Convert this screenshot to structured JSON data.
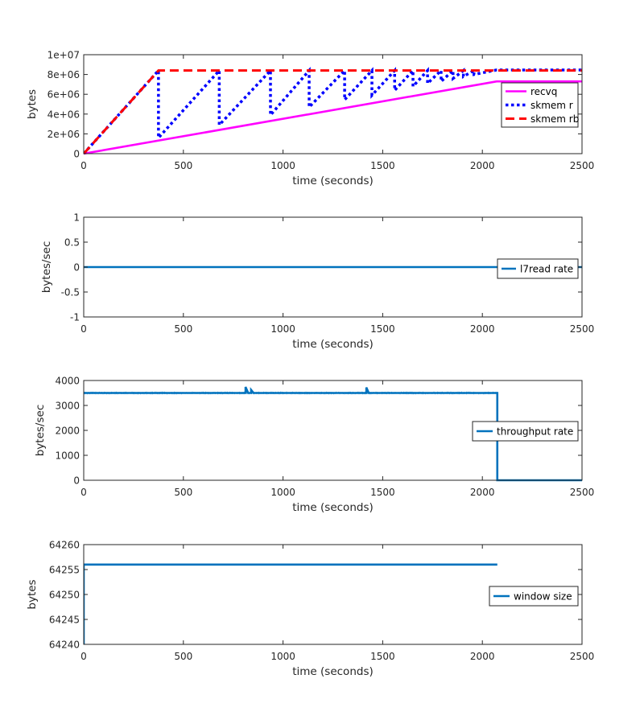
{
  "chart_data": [
    {
      "type": "line",
      "title": "",
      "xlabel": "time (seconds)",
      "ylabel": "bytes",
      "xlim": [
        0,
        2500
      ],
      "ylim": [
        0,
        10000000
      ],
      "xticks": [
        0,
        500,
        1000,
        1500,
        2000,
        2500
      ],
      "xtick_labels": [
        "0",
        "500",
        "1000",
        "1500",
        "2000",
        "2500"
      ],
      "yticks": [
        0,
        2000000,
        4000000,
        6000000,
        8000000,
        10000000
      ],
      "ytick_labels": [
        "0",
        "2e+06",
        "4e+06",
        "6e+06",
        "8e+06",
        "1e+07"
      ],
      "grid": false,
      "legend_position": "right",
      "series": [
        {
          "name": "recvq",
          "color": "#ff00ff",
          "style": "solid",
          "x": [
            0,
            2072,
            2500
          ],
          "y": [
            0,
            7300000,
            7300000
          ]
        },
        {
          "name": "skmem r",
          "color": "#0000ff",
          "style": "dotted",
          "x": [
            0,
            375,
            375,
            680,
            680,
            937,
            937,
            1131,
            1131,
            1309,
            1309,
            1446,
            1446,
            1560,
            1560,
            1652,
            1652,
            1725,
            1725,
            1793,
            1793,
            1853,
            1853,
            1905,
            1905,
            1958,
            1958,
            2070,
            2500
          ],
          "y": [
            0,
            8400000,
            1600000,
            8400000,
            2900000,
            8400000,
            3900000,
            8400000,
            4700000,
            8400000,
            5450000,
            8400000,
            5900000,
            8400000,
            6400000,
            8400000,
            6800000,
            8400000,
            7100000,
            8400000,
            7300000,
            8400000,
            7600000,
            8400000,
            7800000,
            8400000,
            8000000,
            8450000,
            8450000
          ]
        },
        {
          "name": "skmem rb",
          "color": "#ff0000",
          "style": "dashed",
          "x": [
            0,
            375,
            2500
          ],
          "y": [
            0,
            8400000,
            8400000
          ]
        }
      ]
    },
    {
      "type": "line",
      "title": "",
      "xlabel": "time (seconds)",
      "ylabel": "bytes/sec",
      "xlim": [
        0,
        2500
      ],
      "ylim": [
        -1,
        1
      ],
      "xticks": [
        0,
        500,
        1000,
        1500,
        2000,
        2500
      ],
      "xtick_labels": [
        "0",
        "500",
        "1000",
        "1500",
        "2000",
        "2500"
      ],
      "yticks": [
        -1,
        -0.5,
        0,
        0.5,
        1
      ],
      "ytick_labels": [
        "-1",
        "-0.5",
        "0",
        "0.5",
        "1"
      ],
      "grid": false,
      "legend_position": "right",
      "series": [
        {
          "name": "l7read rate",
          "color": "#0072bd",
          "style": "solid",
          "x": [
            0,
            2500
          ],
          "y": [
            0,
            0
          ]
        }
      ]
    },
    {
      "type": "line",
      "title": "",
      "xlabel": "time (seconds)",
      "ylabel": "bytes/sec",
      "xlim": [
        0,
        2500
      ],
      "ylim": [
        0,
        4000
      ],
      "xticks": [
        0,
        500,
        1000,
        1500,
        2000,
        2500
      ],
      "xtick_labels": [
        "0",
        "500",
        "1000",
        "1500",
        "2000",
        "2500"
      ],
      "yticks": [
        0,
        1000,
        2000,
        3000,
        4000
      ],
      "ytick_labels": [
        "0",
        "1000",
        "2000",
        "3000",
        "4000"
      ],
      "grid": false,
      "legend_position": "right",
      "series": [
        {
          "name": "throughput rate",
          "color": "#0072bd",
          "style": "solid",
          "x": [
            0,
            800,
            812,
            812,
            825,
            840,
            840,
            852,
            1405,
            1418,
            1418,
            1430,
            2075,
            2075,
            2500
          ],
          "y": [
            3500,
            3500,
            3500,
            3740,
            3500,
            3500,
            3620,
            3500,
            3500,
            3500,
            3720,
            3500,
            3500,
            0,
            0
          ],
          "noise_band": [
            3440,
            3560
          ]
        }
      ]
    },
    {
      "type": "line",
      "title": "",
      "xlabel": "time (seconds)",
      "ylabel": "bytes",
      "xlim": [
        0,
        2500
      ],
      "ylim": [
        64240,
        64260
      ],
      "xticks": [
        0,
        500,
        1000,
        1500,
        2000,
        2500
      ],
      "xtick_labels": [
        "0",
        "500",
        "1000",
        "1500",
        "2000",
        "2500"
      ],
      "yticks": [
        64240,
        64245,
        64250,
        64255,
        64260
      ],
      "ytick_labels": [
        "64240",
        "64245",
        "64250",
        "64255",
        "64260"
      ],
      "grid": false,
      "legend_position": "right",
      "series": [
        {
          "name": "window size",
          "color": "#0072bd",
          "style": "solid",
          "x": [
            0,
            0,
            2075
          ],
          "y": [
            64240,
            64256,
            64256
          ]
        }
      ]
    }
  ]
}
